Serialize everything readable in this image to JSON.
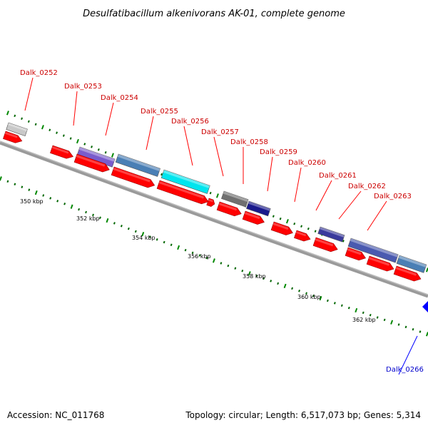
{
  "title": "Desulfatibacillum alkenivorans AK-01, complete genome",
  "accession": "Accession: NC_011768",
  "topology": "Topology: circular; Length: 6,517,073 bp; Genes: 5,314",
  "colors": {
    "forward_cds": "#ff0000",
    "reverse_cds": "#0000ff",
    "label_forward": "#cc0000",
    "label_reverse": "#0000cc",
    "backbone": "#808080",
    "minor_tick": "#006600",
    "major_tick": "#008800"
  },
  "axis": {
    "ticks": [
      {
        "label": "350 kbp",
        "value_kbp": 350
      },
      {
        "label": "352 kbp",
        "value_kbp": 352
      },
      {
        "label": "354 kbp",
        "value_kbp": 354
      },
      {
        "label": "356 kbp",
        "value_kbp": 356
      },
      {
        "label": "358 kbp",
        "value_kbp": 358
      },
      {
        "label": "360 kbp",
        "value_kbp": 360
      },
      {
        "label": "362 kbp",
        "value_kbp": 362
      }
    ]
  },
  "gene_labels": [
    {
      "text": "Dalk_0252",
      "strand": "forward"
    },
    {
      "text": "Dalk_0253",
      "strand": "forward"
    },
    {
      "text": "Dalk_0254",
      "strand": "forward"
    },
    {
      "text": "Dalk_0255",
      "strand": "forward"
    },
    {
      "text": "Dalk_0256",
      "strand": "forward"
    },
    {
      "text": "Dalk_0257",
      "strand": "forward"
    },
    {
      "text": "Dalk_0258",
      "strand": "forward"
    },
    {
      "text": "Dalk_0259",
      "strand": "forward"
    },
    {
      "text": "Dalk_0260",
      "strand": "forward"
    },
    {
      "text": "Dalk_0261",
      "strand": "forward"
    },
    {
      "text": "Dalk_0262",
      "strand": "forward"
    },
    {
      "text": "Dalk_0263",
      "strand": "forward"
    },
    {
      "text": "Dalk_0266",
      "strand": "reverse"
    }
  ],
  "cog_bars": [
    {
      "color": "#c8c8c8"
    },
    {
      "color": "#7a5ccc"
    },
    {
      "color": "#4a7fb5"
    },
    {
      "color": "#00e5ee"
    },
    {
      "color": "#707070"
    },
    {
      "color": "#1a1a8c"
    },
    {
      "color": "#3a3a9c"
    },
    {
      "color": "#4a5ab0"
    },
    {
      "color": "#4a7fb5"
    }
  ]
}
